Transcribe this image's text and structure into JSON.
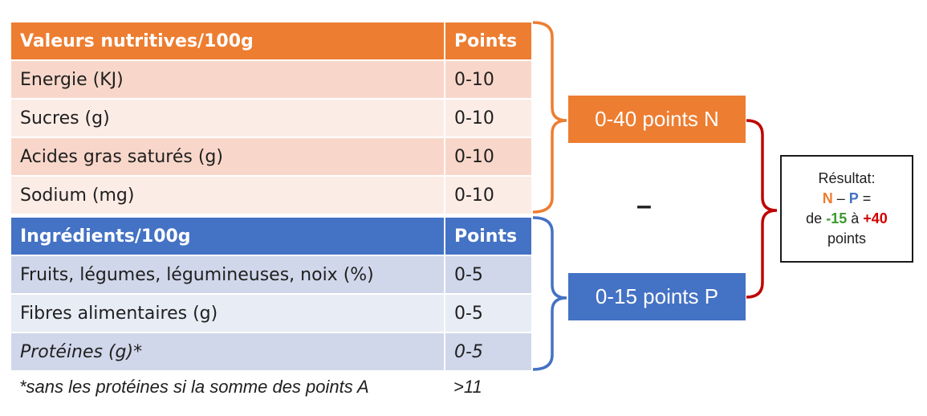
{
  "colors": {
    "orange": "#ED7D31",
    "orange_row_dark": "#F8D7CA",
    "orange_row_light": "#FCECE6",
    "blue": "#4472C4",
    "blue_row_dark": "#D0D7EA",
    "blue_row_light": "#E8ECF5",
    "red_bracket": "#C00000",
    "green_text": "#3A9A2A",
    "red_text": "#D00000"
  },
  "table_n": {
    "header": {
      "label": "Valeurs nutritives/100g",
      "points": "Points"
    },
    "rows": [
      {
        "label": "Energie (KJ)",
        "points": "0-10"
      },
      {
        "label": "Sucres (g)",
        "points": "0-10"
      },
      {
        "label": "Acides gras saturés (g)",
        "points": "0-10"
      },
      {
        "label": "Sodium (mg)",
        "points": "0-10"
      }
    ]
  },
  "table_p": {
    "header": {
      "label": "Ingrédients/100g",
      "points": "Points"
    },
    "rows": [
      {
        "label": "Fruits, légumes, légumineuses, noix (%)",
        "points": "0-5"
      },
      {
        "label": "Fibres alimentaires (g)",
        "points": "0-5"
      },
      {
        "label": "Protéines (g)*",
        "points": "0-5"
      }
    ]
  },
  "footnote": {
    "text": "*sans les protéines si la somme des points A",
    "value": ">11"
  },
  "box_n": "0-40 points N",
  "box_p": "0-15 points P",
  "minus": "–",
  "result": {
    "line1": "Résultat:",
    "n": "N",
    "dash": "–",
    "p": "P",
    "eq": "=",
    "de": "de",
    "min": "-15",
    "a": "à",
    "max": "+40",
    "line4": "points"
  }
}
